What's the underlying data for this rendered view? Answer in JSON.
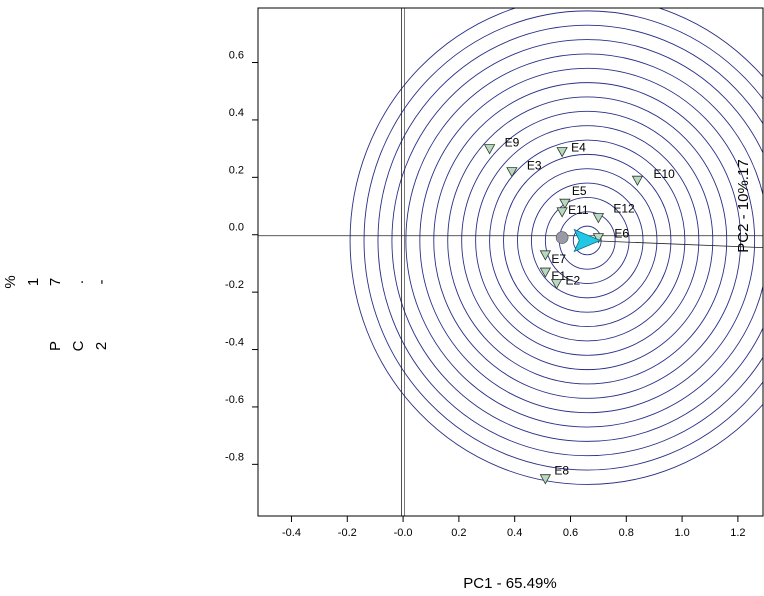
{
  "chart_data": {
    "type": "scatter",
    "xlabel": "PC1 - 65.49%",
    "ylabel_chars": [
      "%",
      "1",
      "7",
      ".",
      "-",
      "",
      "P",
      "C",
      "2"
    ],
    "xlim": [
      -0.52,
      1.29
    ],
    "ylim": [
      -0.98,
      0.79
    ],
    "x_ticks": [
      {
        "v": -0.4,
        "label": "-0.4"
      },
      {
        "v": -0.2,
        "label": "-0.2"
      },
      {
        "v": 0.0,
        "label": "-0.0"
      },
      {
        "v": 0.2,
        "label": "0.2"
      },
      {
        "v": 0.4,
        "label": "0.4"
      },
      {
        "v": 0.6,
        "label": "0.6"
      },
      {
        "v": 0.8,
        "label": "0.8"
      },
      {
        "v": 1.0,
        "label": "1.0"
      },
      {
        "v": 1.2,
        "label": "1.2"
      }
    ],
    "y_ticks": [
      {
        "v": 0.6,
        "label": "0.6"
      },
      {
        "v": 0.4,
        "label": "0.4"
      },
      {
        "v": 0.2,
        "label": "0.2"
      },
      {
        "v": 0.0,
        "label": "0.0"
      },
      {
        "v": -0.2,
        "label": "-0.2"
      },
      {
        "v": -0.4,
        "label": "-0.4"
      },
      {
        "v": -0.6,
        "label": "-0.6"
      },
      {
        "v": -0.8,
        "label": "-0.8"
      }
    ],
    "points": [
      {
        "name": "E9",
        "x": 0.31,
        "y": 0.3
      },
      {
        "name": "E4",
        "x": 0.57,
        "y": 0.29
      },
      {
        "name": "E3",
        "x": 0.39,
        "y": 0.22
      },
      {
        "name": "E10",
        "x": 0.84,
        "y": 0.19
      },
      {
        "name": "E5",
        "x": 0.58,
        "y": 0.11
      },
      {
        "name": "E11",
        "x": 0.57,
        "y": 0.08
      },
      {
        "name": "E12",
        "x": 0.7,
        "y": 0.06
      },
      {
        "name": "E6",
        "x": 0.7,
        "y": -0.01
      },
      {
        "name": "E7",
        "x": 0.51,
        "y": -0.07
      },
      {
        "name": "E1",
        "x": 0.51,
        "y": -0.13
      },
      {
        "name": "E2",
        "x": 0.55,
        "y": -0.17
      },
      {
        "name": "E8",
        "x": 0.51,
        "y": -0.85
      }
    ],
    "ideal_center": {
      "x": 0.66,
      "y": -0.02
    },
    "ring_radii": [
      0.05,
      0.1,
      0.15,
      0.2,
      0.25,
      0.3,
      0.35,
      0.4,
      0.45,
      0.5,
      0.55,
      0.6,
      0.65,
      0.7,
      0.75,
      0.8,
      0.85
    ],
    "vector_label": "PC2 - 10%.17",
    "colors": {
      "rings": "#2b2f86",
      "points": "#b8d8bf",
      "arrow": "#22c7e6",
      "origin_marker": "#9a9aa6"
    }
  }
}
